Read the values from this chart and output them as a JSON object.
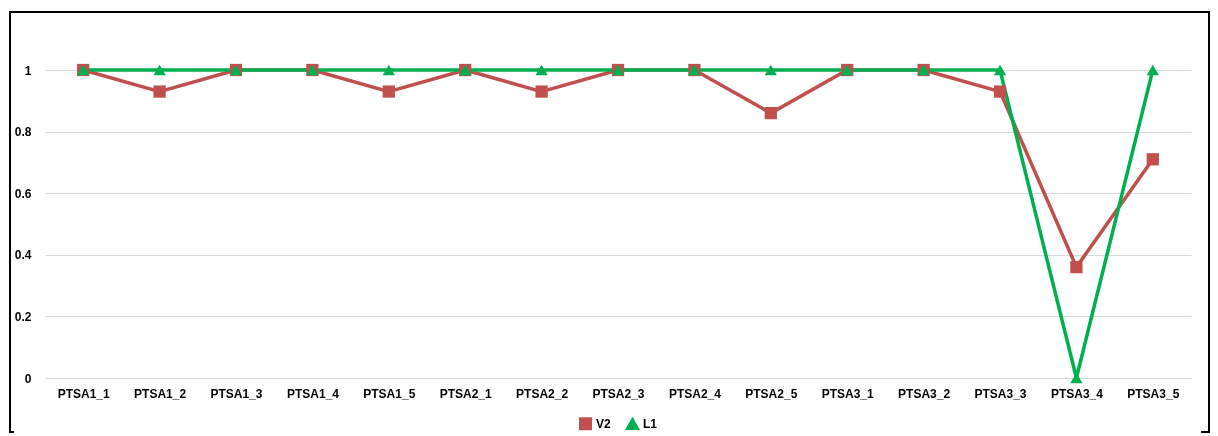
{
  "chart_data": {
    "type": "line",
    "categories": [
      "PTSA1_1",
      "PTSA1_2",
      "PTSA1_3",
      "PTSA1_4",
      "PTSA1_5",
      "PTSA2_1",
      "PTSA2_2",
      "PTSA2_3",
      "PTSA2_4",
      "PTSA2_5",
      "PTSA3_1",
      "PTSA3_2",
      "PTSA3_3",
      "PTSA3_4",
      "PTSA3_5"
    ],
    "series": [
      {
        "name": "V2",
        "color": "#c0504d",
        "marker": "square",
        "values": [
          1,
          0.93,
          1,
          1,
          0.93,
          1,
          0.93,
          1,
          1,
          0.86,
          1,
          1,
          0.93,
          0.36,
          0.71
        ]
      },
      {
        "name": "L1",
        "color": "#00b050",
        "marker": "triangle",
        "values": [
          1,
          1,
          1,
          1,
          1,
          1,
          1,
          1,
          1,
          1,
          1,
          1,
          1,
          0,
          1
        ]
      }
    ],
    "ylim": [
      0,
      1
    ],
    "yticks": [
      0,
      0.2,
      0.4,
      0.6,
      0.8,
      1
    ],
    "grid": "y",
    "legend": "bottom",
    "line_style": "solid"
  }
}
